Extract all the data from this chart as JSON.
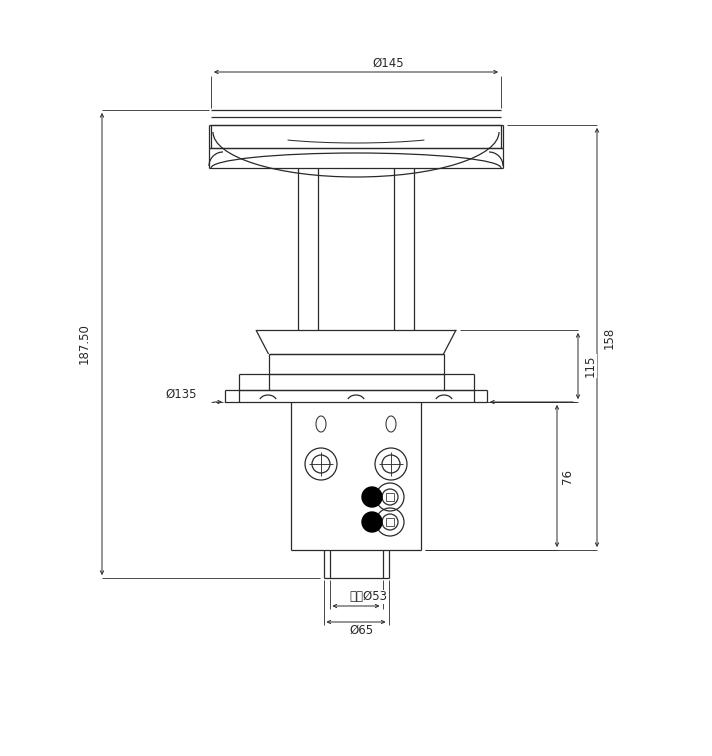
{
  "bg_color": "#ffffff",
  "line_color": "#2a2a2a",
  "dim_color": "#2a2a2a",
  "fig_width": 7.12,
  "fig_height": 7.56,
  "annotations": {
    "phi145": "Ø145",
    "phi135": "Ø135",
    "phi53": "内径Ø53",
    "phi65": "Ø65",
    "dim_187_50": "187.50",
    "dim_115": "115",
    "dim_158": "158",
    "dim_76": "76"
  }
}
